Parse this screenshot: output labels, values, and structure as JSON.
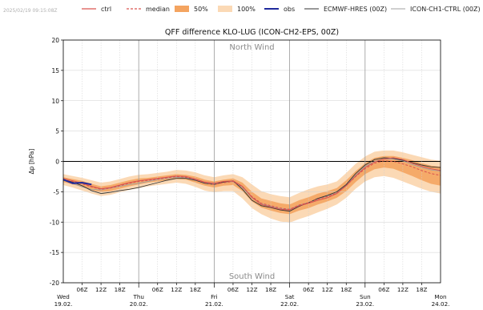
{
  "header": {
    "timestamp": "2025/02/19 09:15:08Z"
  },
  "legend": {
    "ctrl": "ctrl",
    "median": "median",
    "p50": "50%",
    "p100": "100%",
    "obs": "obs",
    "ecmwf": "ECMWF-HRES (00Z)",
    "ich1": "ICON-CH1-CTRL (00Z)"
  },
  "colors": {
    "ctrl": "#d9534f",
    "median": "#d9534f",
    "band50": "#f4a460",
    "band100": "#fbd9b5",
    "obs": "#1f2a9c",
    "ecmwf": "#333333",
    "ich1": "#a0a0a0"
  },
  "chart_data": {
    "type": "line",
    "title": "QFF difference KLO-LUG (ICON-CH2-EPS, 00Z)",
    "ylabel": "Δp [hPa]",
    "ylim": [
      -20,
      20
    ],
    "yticks": [
      -20,
      -15,
      -10,
      -5,
      0,
      5,
      10,
      15,
      20
    ],
    "xlim_hours": [
      0,
      120
    ],
    "x_labels_hours": [
      "06Z",
      "12Z",
      "18Z"
    ],
    "day_labels": [
      {
        "day": "Wed",
        "date": "19.02."
      },
      {
        "day": "Thu",
        "date": "20.02."
      },
      {
        "day": "Fri",
        "date": "21.02."
      },
      {
        "day": "Sat",
        "date": "22.02."
      },
      {
        "day": "Sun",
        "date": "23.02."
      },
      {
        "day": "Mon",
        "date": "24.02."
      }
    ],
    "annotation_top": "North Wind",
    "annotation_bottom": "South Wind",
    "x_hours": [
      0,
      3,
      6,
      9,
      12,
      15,
      18,
      21,
      24,
      27,
      30,
      33,
      36,
      39,
      42,
      45,
      48,
      51,
      54,
      57,
      60,
      63,
      66,
      69,
      72,
      75,
      78,
      81,
      84,
      87,
      90,
      93,
      96,
      99,
      102,
      105,
      108,
      111,
      114,
      117,
      120
    ],
    "series": [
      {
        "name": "median",
        "values": [
          -3.0,
          -3.3,
          -3.7,
          -4.2,
          -4.6,
          -4.4,
          -4.0,
          -3.6,
          -3.3,
          -3.1,
          -2.9,
          -2.7,
          -2.5,
          -2.6,
          -3.0,
          -3.5,
          -3.8,
          -3.5,
          -3.3,
          -4.2,
          -5.8,
          -6.9,
          -7.3,
          -7.7,
          -7.9,
          -7.2,
          -6.8,
          -6.2,
          -5.8,
          -5.2,
          -4.0,
          -2.5,
          -1.2,
          -0.3,
          0.1,
          0.0,
          -0.4,
          -0.9,
          -1.5,
          -2.0,
          -2.3
        ]
      },
      {
        "name": "ctrl",
        "values": [
          -2.8,
          -3.2,
          -3.6,
          -4.1,
          -4.5,
          -4.3,
          -3.9,
          -3.5,
          -3.2,
          -3.0,
          -2.8,
          -2.6,
          -2.4,
          -2.5,
          -2.9,
          -3.4,
          -3.6,
          -3.3,
          -3.2,
          -4.1,
          -5.9,
          -7.1,
          -7.5,
          -7.9,
          -8.0,
          -7.3,
          -6.9,
          -6.4,
          -6.0,
          -5.3,
          -4.0,
          -2.4,
          -1.0,
          -0.1,
          0.4,
          0.6,
          0.3,
          -0.3,
          -0.8,
          -1.2,
          -1.5
        ]
      },
      {
        "name": "ECMWF-HRES (00Z)",
        "values": [
          -3.0,
          -3.4,
          -4.0,
          -4.8,
          -5.3,
          -5.1,
          -4.8,
          -4.6,
          -4.3,
          -3.9,
          -3.5,
          -3.1,
          -2.8,
          -2.8,
          -3.1,
          -3.6,
          -3.8,
          -3.4,
          -3.2,
          -4.6,
          -6.4,
          -7.3,
          -7.6,
          -8.0,
          -8.2,
          -7.4,
          -6.8,
          -6.1,
          -5.6,
          -5.0,
          -3.8,
          -2.0,
          -0.6,
          0.3,
          0.6,
          0.5,
          0.2,
          -0.2,
          -0.6,
          -0.9,
          -1.0
        ]
      },
      {
        "name": "ICON-CH1-CTRL (00Z)",
        "values": [
          -3.1,
          -3.6,
          -4.2,
          -4.6,
          -4.7,
          -4.4,
          -4.1,
          -3.8,
          -3.6,
          -3.3,
          -3.0,
          -2.8,
          -2.6,
          -2.7,
          -3.0,
          -3.5,
          -3.7,
          -3.4,
          -3.3,
          -4.3,
          -6.0,
          -7.0,
          -7.4,
          -7.8,
          -7.9,
          -7.2,
          -6.8,
          -6.2,
          -5.7,
          -5.2,
          -3.9,
          -2.3,
          -0.8,
          0.0,
          0.4,
          0.4,
          0.1,
          -0.5,
          -1.0,
          -1.4,
          -1.6
        ]
      },
      {
        "name": "obs",
        "values": [
          -3.0,
          -3.6,
          -3.5,
          -3.8
        ]
      }
    ],
    "band50": {
      "lower": [
        -3.4,
        -3.8,
        -4.2,
        -4.7,
        -5.1,
        -4.9,
        -4.5,
        -4.1,
        -3.8,
        -3.5,
        -3.3,
        -3.1,
        -2.9,
        -3.0,
        -3.5,
        -4.0,
        -4.3,
        -4.0,
        -3.9,
        -4.9,
        -6.6,
        -7.6,
        -8.1,
        -8.5,
        -8.7,
        -8.1,
        -7.7,
        -7.1,
        -6.6,
        -6.0,
        -4.9,
        -3.4,
        -2.1,
        -1.3,
        -1.0,
        -1.2,
        -1.8,
        -2.4,
        -3.1,
        -3.7,
        -4.0
      ],
      "upper": [
        -2.6,
        -2.9,
        -3.2,
        -3.7,
        -4.1,
        -3.9,
        -3.5,
        -3.1,
        -2.8,
        -2.7,
        -2.5,
        -2.3,
        -2.1,
        -2.2,
        -2.5,
        -3.0,
        -3.3,
        -3.0,
        -2.8,
        -3.5,
        -5.0,
        -6.1,
        -6.5,
        -6.9,
        -7.1,
        -6.4,
        -5.9,
        -5.3,
        -4.9,
        -4.4,
        -3.1,
        -1.6,
        -0.3,
        0.6,
        0.9,
        0.9,
        0.6,
        0.2,
        -0.3,
        -0.7,
        -0.9
      ]
    },
    "band100": {
      "lower": [
        -3.9,
        -4.3,
        -4.8,
        -5.3,
        -5.7,
        -5.5,
        -5.1,
        -4.7,
        -4.4,
        -4.1,
        -3.9,
        -3.7,
        -3.5,
        -3.7,
        -4.2,
        -4.8,
        -5.1,
        -4.9,
        -4.9,
        -6.1,
        -7.7,
        -8.7,
        -9.4,
        -9.9,
        -10.1,
        -9.5,
        -9.0,
        -8.4,
        -7.8,
        -7.1,
        -6.0,
        -4.5,
        -3.3,
        -2.6,
        -2.4,
        -2.7,
        -3.3,
        -3.9,
        -4.5,
        -5.0,
        -5.3
      ],
      "upper": [
        -2.1,
        -2.4,
        -2.7,
        -3.1,
        -3.5,
        -3.3,
        -2.9,
        -2.5,
        -2.2,
        -2.1,
        -1.9,
        -1.7,
        -1.4,
        -1.5,
        -1.8,
        -2.3,
        -2.6,
        -2.3,
        -2.1,
        -2.6,
        -3.8,
        -4.9,
        -5.4,
        -5.7,
        -5.9,
        -5.2,
        -4.6,
        -4.1,
        -3.8,
        -3.3,
        -1.9,
        -0.4,
        0.8,
        1.6,
        1.8,
        1.8,
        1.5,
        1.1,
        0.7,
        0.3,
        0.1
      ]
    }
  }
}
